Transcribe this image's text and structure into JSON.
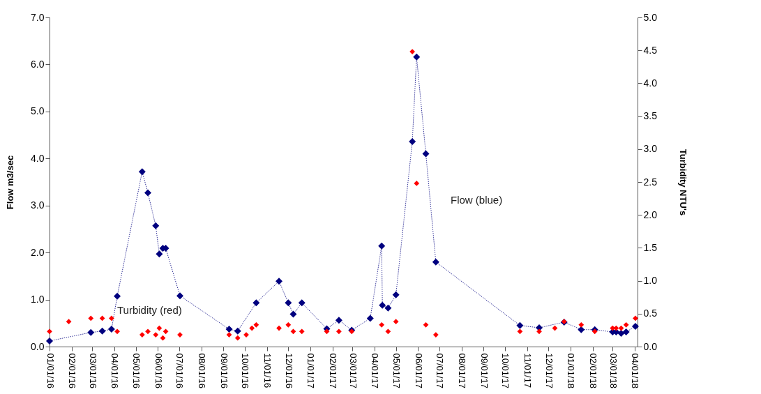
{
  "chart_data": {
    "type": "line",
    "ylabel": "Flow m3/sec",
    "y2label": "Turbidity NTU's",
    "xlim": [
      "2016-01-01",
      "2018-04-05"
    ],
    "xticks": [
      {
        "value": "2016-01-01",
        "label": "01/01/16"
      },
      {
        "value": "2016-02-01",
        "label": "02/01/16"
      },
      {
        "value": "2016-03-01",
        "label": "03/01/16"
      },
      {
        "value": "2016-04-01",
        "label": "04/01/16"
      },
      {
        "value": "2016-05-01",
        "label": "05/01/16"
      },
      {
        "value": "2016-06-01",
        "label": "06/01/16"
      },
      {
        "value": "2016-07-01",
        "label": "07/01/16"
      },
      {
        "value": "2016-08-01",
        "label": "08/01/16"
      },
      {
        "value": "2016-09-01",
        "label": "09/01/16"
      },
      {
        "value": "2016-10-01",
        "label": "10/01/16"
      },
      {
        "value": "2016-11-01",
        "label": "11/01/16"
      },
      {
        "value": "2016-12-01",
        "label": "12/01/16"
      },
      {
        "value": "2017-01-01",
        "label": "01/01/17"
      },
      {
        "value": "2017-02-01",
        "label": "02/01/17"
      },
      {
        "value": "2017-03-01",
        "label": "03/01/17"
      },
      {
        "value": "2017-04-01",
        "label": "04/01/17"
      },
      {
        "value": "2017-05-01",
        "label": "05/01/17"
      },
      {
        "value": "2017-06-01",
        "label": "06/01/17"
      },
      {
        "value": "2017-07-01",
        "label": "07/01/17"
      },
      {
        "value": "2017-08-01",
        "label": "08/01/17"
      },
      {
        "value": "2017-09-01",
        "label": "09/01/17"
      },
      {
        "value": "2017-10-01",
        "label": "10/01/17"
      },
      {
        "value": "2017-11-01",
        "label": "11/01/17"
      },
      {
        "value": "2017-12-01",
        "label": "12/01/17"
      },
      {
        "value": "2018-01-01",
        "label": "01/01/18"
      },
      {
        "value": "2018-02-01",
        "label": "02/01/18"
      },
      {
        "value": "2018-03-01",
        "label": "03/01/18"
      },
      {
        "value": "2018-04-01",
        "label": "04/01/18"
      }
    ],
    "ylim": [
      0,
      7
    ],
    "yticks": [
      {
        "value": 0,
        "label": "0.0"
      },
      {
        "value": 1,
        "label": "1.0"
      },
      {
        "value": 2,
        "label": "2.0"
      },
      {
        "value": 3,
        "label": "3.0"
      },
      {
        "value": 4,
        "label": "4.0"
      },
      {
        "value": 5,
        "label": "5.0"
      },
      {
        "value": 6,
        "label": "6.0"
      },
      {
        "value": 7,
        "label": "7.0"
      }
    ],
    "y2lim": [
      0,
      5
    ],
    "y2ticks": [
      {
        "value": 0,
        "label": "0.0"
      },
      {
        "value": 0.5,
        "label": "0.5"
      },
      {
        "value": 1,
        "label": "1.0"
      },
      {
        "value": 1.5,
        "label": "1.5"
      },
      {
        "value": 2,
        "label": "2.0"
      },
      {
        "value": 2.5,
        "label": "2.5"
      },
      {
        "value": 3,
        "label": "3.0"
      },
      {
        "value": 3.5,
        "label": "3.5"
      },
      {
        "value": 4,
        "label": "4.0"
      },
      {
        "value": 4.5,
        "label": "4.5"
      },
      {
        "value": 5,
        "label": "5.0"
      }
    ],
    "marker": "diamond",
    "line_style": "dotted",
    "grid": false,
    "legend": false,
    "series": [
      {
        "name": "Flow (blue)",
        "type": "line",
        "color": "#00007f",
        "x": [
          "2016-01-01",
          "2016-02-28",
          "2016-03-15",
          "2016-03-28",
          "2016-04-05",
          "2016-05-10",
          "2016-05-18",
          "2016-05-29",
          "2016-06-03",
          "2016-06-08",
          "2016-06-12",
          "2016-07-02",
          "2016-09-09",
          "2016-09-21",
          "2016-10-17",
          "2016-11-18",
          "2016-12-01",
          "2016-12-08",
          "2016-12-20",
          "2017-01-24",
          "2017-02-10",
          "2017-02-28",
          "2017-03-26",
          "2017-04-11",
          "2017-04-12",
          "2017-04-20",
          "2017-05-01",
          "2017-05-24",
          "2017-05-30",
          "2017-06-12",
          "2017-06-26",
          "2017-10-22",
          "2017-11-18",
          "2017-12-23",
          "2018-01-16",
          "2018-02-04",
          "2018-03-01",
          "2018-03-06",
          "2018-03-13",
          "2018-03-20",
          "2018-04-02"
        ],
        "values": [
          0.12,
          0.3,
          0.33,
          0.37,
          1.07,
          3.72,
          3.27,
          2.57,
          1.97,
          2.09,
          2.09,
          1.08,
          0.37,
          0.33,
          0.93,
          1.39,
          0.93,
          0.69,
          0.93,
          0.38,
          0.56,
          0.35,
          0.6,
          2.14,
          0.88,
          0.82,
          1.1,
          4.36,
          6.16,
          4.1,
          1.8,
          0.45,
          0.4,
          0.52,
          0.36,
          0.36,
          0.31,
          0.31,
          0.28,
          0.31,
          0.43
        ]
      },
      {
        "name": "Turbidity (red)",
        "type": "scatter",
        "axis": "y2",
        "color": "#ff0000",
        "x": [
          "2016-01-01",
          "2016-01-28",
          "2016-02-28",
          "2016-03-15",
          "2016-03-28",
          "2016-04-05",
          "2016-05-10",
          "2016-05-18",
          "2016-05-29",
          "2016-06-03",
          "2016-06-08",
          "2016-06-12",
          "2016-07-02",
          "2016-09-09",
          "2016-09-21",
          "2016-10-03",
          "2016-10-11",
          "2016-10-17",
          "2016-11-18",
          "2016-12-01",
          "2016-12-08",
          "2016-12-20",
          "2017-01-24",
          "2017-02-10",
          "2017-02-28",
          "2017-04-11",
          "2017-04-20",
          "2017-05-01",
          "2017-05-24",
          "2017-05-30",
          "2017-06-12",
          "2017-06-26",
          "2017-10-22",
          "2017-11-18",
          "2017-12-10",
          "2017-12-23",
          "2018-01-16",
          "2018-02-04",
          "2018-03-01",
          "2018-03-06",
          "2018-03-13",
          "2018-03-20",
          "2018-04-02"
        ],
        "values": [
          0.23,
          0.38,
          0.43,
          0.43,
          0.43,
          0.23,
          0.18,
          0.23,
          0.18,
          0.28,
          0.13,
          0.23,
          0.18,
          0.18,
          0.13,
          0.18,
          0.28,
          0.33,
          0.28,
          0.33,
          0.23,
          0.23,
          0.23,
          0.23,
          0.23,
          0.33,
          0.23,
          0.38,
          4.48,
          2.48,
          0.33,
          0.18,
          0.23,
          0.23,
          0.28,
          0.38,
          0.33,
          0.23,
          0.28,
          0.28,
          0.28,
          0.33,
          0.43
        ]
      }
    ]
  }
}
